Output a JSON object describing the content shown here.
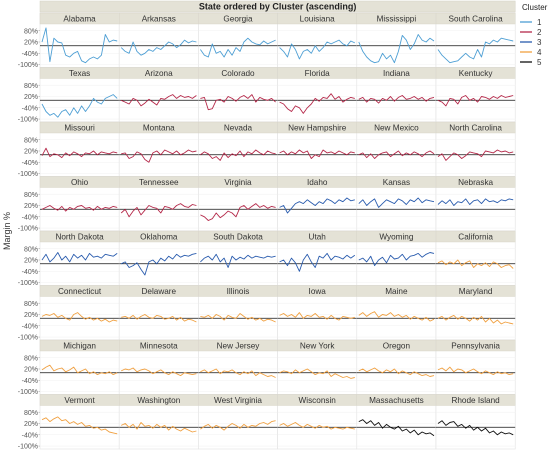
{
  "chart_data": {
    "type": "line",
    "title": "State ordered by Cluster (ascending)",
    "ylabel": "Margin %",
    "yticks": [
      "80%",
      "20%",
      "-40%",
      "-100%"
    ],
    "ytick_values": [
      80,
      20,
      -40,
      -100
    ],
    "ylim": [
      -105,
      105
    ],
    "zero_line": 0,
    "grid": true,
    "legend": {
      "title": "Cluster",
      "placement": "top-right",
      "entries": [
        {
          "label": "1",
          "color": "#4e9fd4"
        },
        {
          "label": "2",
          "color": "#b5294a"
        },
        {
          "label": "3",
          "color": "#2a5cae"
        },
        {
          "label": "4",
          "color": "#f0a040"
        },
        {
          "label": "5",
          "color": "#111111"
        }
      ]
    },
    "panels": [
      {
        "state": "Alabama",
        "cluster": "1",
        "values": [
          20,
          95,
          -85,
          40,
          20,
          15,
          -50,
          -60,
          -40,
          -30,
          -80,
          -90,
          -70,
          -60,
          -70,
          -50,
          60,
          20,
          30,
          25
        ]
      },
      {
        "state": "Arkansas",
        "cluster": "1",
        "values": [
          -10,
          -30,
          -40,
          20,
          -30,
          -50,
          -40,
          -20,
          -30,
          -10,
          -20,
          0,
          20,
          10,
          -10,
          5,
          30,
          15,
          25,
          20
        ]
      },
      {
        "state": "Georgia",
        "cluster": "1",
        "values": [
          -20,
          -50,
          -60,
          10,
          -40,
          -30,
          -60,
          -20,
          -50,
          -10,
          -30,
          20,
          40,
          20,
          10,
          5,
          25,
          10,
          20,
          30
        ]
      },
      {
        "state": "Louisiana",
        "cluster": "1",
        "values": [
          -10,
          -30,
          -60,
          10,
          -20,
          -70,
          -30,
          -20,
          -40,
          0,
          -30,
          -10,
          20,
          10,
          20,
          30,
          10,
          0,
          25,
          15
        ]
      },
      {
        "state": "Mississippi",
        "cluster": "1",
        "values": [
          20,
          -30,
          -60,
          -80,
          -90,
          -85,
          -40,
          -70,
          -50,
          -90,
          -30,
          55,
          30,
          -20,
          10,
          60,
          30,
          20,
          40,
          25
        ]
      },
      {
        "state": "South Carolina",
        "cluster": "1",
        "values": [
          -20,
          -50,
          -70,
          -90,
          -85,
          -80,
          -60,
          -40,
          -60,
          -70,
          -20,
          -60,
          20,
          10,
          30,
          20,
          40,
          35,
          30,
          25
        ]
      },
      {
        "state": "Texas",
        "cluster": "1",
        "values": [
          -20,
          -60,
          -80,
          -70,
          -90,
          -60,
          -50,
          -80,
          -40,
          -70,
          -30,
          -60,
          -30,
          10,
          -10,
          -20,
          10,
          20,
          30,
          10
        ]
      },
      {
        "state": "Arizona",
        "cluster": "2",
        "values": [
          0,
          -10,
          -20,
          10,
          0,
          -30,
          -15,
          5,
          -10,
          -25,
          10,
          5,
          20,
          30,
          10,
          25,
          15,
          20,
          10,
          25
        ]
      },
      {
        "state": "Colorado",
        "cluster": "2",
        "values": [
          10,
          15,
          -50,
          -45,
          0,
          5,
          -10,
          20,
          10,
          -5,
          15,
          25,
          10,
          30,
          -10,
          15,
          5,
          0,
          10,
          -10
        ]
      },
      {
        "state": "Florida",
        "cluster": "2",
        "values": [
          -10,
          -20,
          -45,
          -60,
          -30,
          -40,
          -70,
          -40,
          -20,
          10,
          -5,
          15,
          10,
          35,
          5,
          20,
          -10,
          5,
          15,
          10
        ]
      },
      {
        "state": "Indiana",
        "cluster": "2",
        "values": [
          5,
          15,
          -10,
          10,
          5,
          -15,
          10,
          0,
          20,
          -5,
          15,
          25,
          5,
          10,
          20,
          5,
          15,
          -5,
          10,
          15
        ]
      },
      {
        "state": "Kentucky",
        "cluster": "2",
        "values": [
          0,
          -10,
          -30,
          10,
          5,
          -20,
          15,
          25,
          0,
          10,
          -10,
          20,
          15,
          5,
          20,
          10,
          25,
          15,
          20,
          25
        ]
      },
      {
        "state": "Missouri",
        "cluster": "2",
        "values": [
          -5,
          35,
          -10,
          5,
          0,
          -15,
          10,
          -5,
          15,
          5,
          -10,
          10,
          5,
          20,
          0,
          15,
          10,
          5,
          15,
          10
        ]
      },
      {
        "state": "Montana",
        "cluster": "2",
        "values": [
          5,
          10,
          -20,
          -10,
          15,
          5,
          -25,
          -40,
          10,
          20,
          0,
          25,
          15,
          5,
          20,
          0,
          10,
          25,
          15,
          20
        ]
      },
      {
        "state": "Nevada",
        "cluster": "2",
        "values": [
          0,
          15,
          5,
          -20,
          -10,
          -30,
          10,
          -15,
          5,
          -5,
          20,
          -10,
          15,
          5,
          25,
          10,
          0,
          20,
          10,
          5
        ]
      },
      {
        "state": "New Hampshire",
        "cluster": "2",
        "values": [
          10,
          20,
          0,
          15,
          5,
          25,
          10,
          20,
          -20,
          0,
          -10,
          25,
          10,
          15,
          5,
          20,
          10,
          0,
          15,
          10
        ]
      },
      {
        "state": "New Mexico",
        "cluster": "2",
        "values": [
          0,
          10,
          -15,
          5,
          -20,
          0,
          10,
          15,
          -10,
          5,
          20,
          -5,
          10,
          0,
          15,
          5,
          -10,
          10,
          20,
          5
        ]
      },
      {
        "state": "North Carolina",
        "cluster": "2",
        "values": [
          -10,
          5,
          -30,
          -10,
          10,
          0,
          -20,
          -5,
          15,
          10,
          5,
          -10,
          20,
          15,
          10,
          25,
          15,
          20,
          10,
          15
        ]
      },
      {
        "state": "Ohio",
        "cluster": "2",
        "values": [
          0,
          10,
          20,
          5,
          -5,
          15,
          -10,
          10,
          0,
          15,
          20,
          5,
          10,
          -5,
          15,
          0,
          10,
          5,
          15,
          10
        ]
      },
      {
        "state": "Tennessee",
        "cluster": "2",
        "values": [
          -20,
          0,
          -40,
          -10,
          10,
          -30,
          -5,
          20,
          10,
          5,
          -20,
          15,
          10,
          0,
          20,
          30,
          15,
          10,
          25,
          20
        ]
      },
      {
        "state": "Virginia",
        "cluster": "2",
        "values": [
          -30,
          -40,
          -60,
          -50,
          -20,
          -45,
          -30,
          -10,
          -20,
          -40,
          10,
          20,
          0,
          15,
          30,
          10,
          20,
          5,
          15,
          10
        ]
      },
      {
        "state": "Idaho",
        "cluster": "3",
        "values": [
          10,
          20,
          -20,
          5,
          30,
          40,
          30,
          50,
          35,
          20,
          40,
          30,
          55,
          45,
          30,
          50,
          40,
          60,
          45,
          50
        ]
      },
      {
        "state": "Kansas",
        "cluster": "3",
        "values": [
          30,
          50,
          20,
          40,
          55,
          10,
          30,
          50,
          40,
          30,
          55,
          45,
          25,
          50,
          40,
          60,
          35,
          50,
          45,
          40
        ]
      },
      {
        "state": "Nebraska",
        "cluster": "3",
        "values": [
          25,
          45,
          30,
          50,
          20,
          40,
          35,
          55,
          25,
          45,
          50,
          30,
          55,
          40,
          45,
          35,
          50,
          45,
          55,
          50
        ]
      },
      {
        "state": "North Dakota",
        "cluster": "3",
        "values": [
          20,
          50,
          10,
          30,
          60,
          20,
          40,
          10,
          50,
          30,
          45,
          20,
          55,
          35,
          40,
          30,
          50,
          45,
          40,
          55
        ]
      },
      {
        "state": "Oklahoma",
        "cluster": "3",
        "values": [
          0,
          10,
          -20,
          -10,
          5,
          -30,
          -60,
          10,
          20,
          0,
          30,
          15,
          40,
          25,
          50,
          35,
          45,
          40,
          50,
          55
        ]
      },
      {
        "state": "South Dakota",
        "cluster": "3",
        "values": [
          10,
          30,
          40,
          20,
          50,
          10,
          30,
          -20,
          40,
          20,
          35,
          25,
          45,
          30,
          40,
          35,
          30,
          40,
          35,
          40
        ]
      },
      {
        "state": "Utah",
        "cluster": "3",
        "values": [
          10,
          20,
          -10,
          30,
          5,
          -40,
          20,
          50,
          10,
          -20,
          40,
          30,
          55,
          20,
          40,
          35,
          25,
          45,
          30,
          45
        ]
      },
      {
        "state": "Wyoming",
        "cluster": "3",
        "values": [
          20,
          30,
          10,
          40,
          -10,
          20,
          35,
          5,
          45,
          25,
          30,
          50,
          20,
          40,
          45,
          55,
          35,
          50,
          60,
          55
        ]
      },
      {
        "state": "California",
        "cluster": "4",
        "values": [
          5,
          15,
          -5,
          10,
          0,
          20,
          -10,
          5,
          15,
          -20,
          0,
          -10,
          5,
          -15,
          10,
          0,
          -20,
          -10,
          -5,
          -25
        ]
      },
      {
        "state": "Connecticut",
        "cluster": "4",
        "values": [
          10,
          20,
          15,
          25,
          5,
          15,
          0,
          -10,
          20,
          30,
          10,
          -5,
          5,
          -10,
          0,
          -15,
          -5,
          -20,
          -10,
          -15
        ]
      },
      {
        "state": "Delaware",
        "cluster": "4",
        "values": [
          5,
          10,
          0,
          15,
          -5,
          10,
          20,
          5,
          0,
          15,
          10,
          -5,
          0,
          10,
          -10,
          5,
          -15,
          -5,
          -10,
          -20
        ]
      },
      {
        "state": "Illinois",
        "cluster": "4",
        "values": [
          10,
          5,
          15,
          0,
          20,
          10,
          -10,
          15,
          5,
          0,
          25,
          10,
          -5,
          5,
          -10,
          0,
          -15,
          -5,
          -10,
          -20
        ]
      },
      {
        "state": "Iowa",
        "cluster": "4",
        "values": [
          15,
          25,
          10,
          20,
          5,
          30,
          0,
          15,
          10,
          25,
          5,
          10,
          -5,
          15,
          0,
          -10,
          10,
          5,
          0,
          5
        ]
      },
      {
        "state": "Maine",
        "cluster": "4",
        "values": [
          15,
          30,
          10,
          25,
          35,
          5,
          20,
          15,
          30,
          10,
          20,
          5,
          15,
          -5,
          10,
          0,
          -10,
          5,
          -15,
          -5
        ]
      },
      {
        "state": "Maryland",
        "cluster": "4",
        "values": [
          0,
          10,
          -10,
          5,
          15,
          -5,
          10,
          0,
          -15,
          5,
          -10,
          10,
          -20,
          0,
          -25,
          -10,
          -30,
          -20,
          -25,
          -30
        ]
      },
      {
        "state": "Michigan",
        "cluster": "4",
        "values": [
          15,
          30,
          40,
          10,
          20,
          25,
          5,
          15,
          30,
          0,
          10,
          20,
          -5,
          5,
          -10,
          0,
          -5,
          5,
          -10,
          0
        ]
      },
      {
        "state": "Minnesota",
        "cluster": "4",
        "values": [
          10,
          20,
          15,
          25,
          5,
          15,
          20,
          10,
          -5,
          5,
          15,
          0,
          -10,
          5,
          -5,
          -15,
          0,
          -5,
          -10,
          -5
        ]
      },
      {
        "state": "New Jersey",
        "cluster": "4",
        "values": [
          5,
          15,
          0,
          10,
          20,
          -5,
          10,
          5,
          15,
          0,
          -10,
          5,
          -5,
          10,
          -15,
          0,
          -10,
          -20,
          -15,
          -25
        ]
      },
      {
        "state": "New York",
        "cluster": "4",
        "values": [
          0,
          10,
          5,
          -5,
          15,
          0,
          10,
          20,
          5,
          -10,
          0,
          -5,
          10,
          -20,
          -5,
          -15,
          -25,
          -20,
          -30,
          -25
        ]
      },
      {
        "state": "Oregon",
        "cluster": "4",
        "values": [
          10,
          20,
          5,
          15,
          25,
          10,
          0,
          15,
          5,
          20,
          -5,
          10,
          0,
          -10,
          5,
          -5,
          -15,
          -10,
          -20,
          -15
        ]
      },
      {
        "state": "Pennsylvania",
        "cluster": "4",
        "values": [
          15,
          25,
          10,
          30,
          5,
          20,
          15,
          0,
          10,
          20,
          5,
          -5,
          10,
          0,
          -10,
          5,
          -5,
          0,
          -10,
          -5
        ]
      },
      {
        "state": "Vermont",
        "cluster": "4",
        "values": [
          40,
          50,
          30,
          45,
          55,
          35,
          40,
          20,
          30,
          15,
          25,
          5,
          10,
          -5,
          0,
          -15,
          -10,
          -25,
          -30,
          -35
        ]
      },
      {
        "state": "Washington",
        "cluster": "4",
        "values": [
          10,
          20,
          0,
          15,
          -10,
          25,
          5,
          10,
          -5,
          15,
          0,
          10,
          -15,
          5,
          -10,
          -20,
          -5,
          -15,
          -25,
          -20
        ]
      },
      {
        "state": "West Virginia",
        "cluster": "4",
        "values": [
          -10,
          5,
          15,
          -5,
          10,
          0,
          -15,
          5,
          20,
          10,
          -5,
          15,
          0,
          10,
          5,
          20,
          25,
          15,
          30,
          35
        ]
      },
      {
        "state": "Wisconsin",
        "cluster": "4",
        "values": [
          10,
          20,
          5,
          15,
          25,
          10,
          0,
          15,
          5,
          -5,
          10,
          0,
          5,
          -10,
          0,
          -5,
          -10,
          0,
          -5,
          -10
        ]
      },
      {
        "state": "Massachusetts",
        "cluster": "5",
        "values": [
          30,
          40,
          20,
          35,
          10,
          25,
          -5,
          15,
          0,
          -10,
          5,
          -20,
          -10,
          -30,
          -15,
          -40,
          -25,
          -35,
          -30,
          -45
        ]
      },
      {
        "state": "Rhode Island",
        "cluster": "5",
        "values": [
          20,
          35,
          10,
          25,
          30,
          5,
          15,
          -5,
          10,
          -15,
          0,
          -20,
          -5,
          -30,
          -20,
          -40,
          -25,
          -35,
          -30,
          -40
        ]
      }
    ]
  }
}
